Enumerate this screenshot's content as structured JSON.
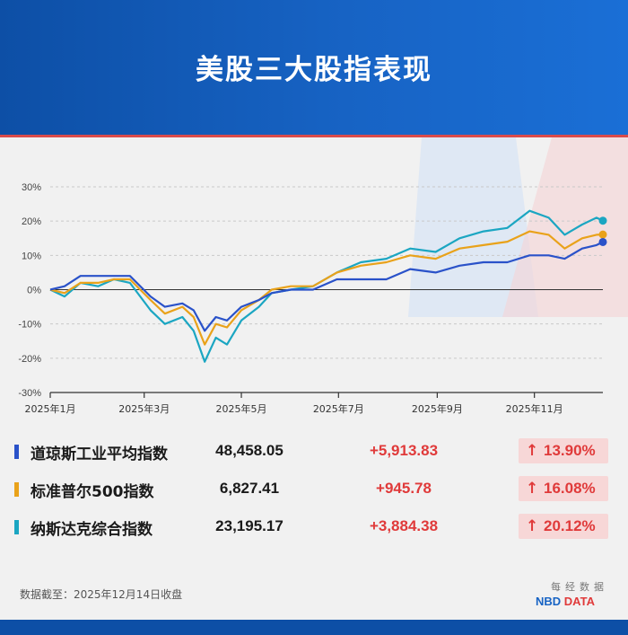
{
  "title": "美股三大股指表现",
  "colors": {
    "header": "#0d4fa6",
    "accent_red": "#e03a3a"
  },
  "chart_data": {
    "type": "line",
    "ylim": [
      -30,
      30
    ],
    "y_ticks": [
      "30%",
      "20%",
      "10%",
      "0%",
      "-10%",
      "-20%",
      "-30%"
    ],
    "y_tick_values": [
      30,
      20,
      10,
      0,
      -10,
      -20,
      -30
    ],
    "x_ticks": [
      "2025年1月",
      "2025年3月",
      "2025年5月",
      "2025年7月",
      "2025年9月",
      "2025年11月"
    ],
    "x_tick_dates": [
      "2025-01-01",
      "2025-03-01",
      "2025-05-01",
      "2025-07-01",
      "2025-09-01",
      "2025-11-01"
    ],
    "x_range": [
      "2025-01-01",
      "2025-12-14"
    ],
    "grid": "horizontal dashed",
    "series": [
      {
        "name": "纳斯达克综合指数",
        "color": "#1ba6c2",
        "x": [
          "2025-01-01",
          "2025-01-10",
          "2025-01-20",
          "2025-01-31",
          "2025-02-10",
          "2025-02-20",
          "2025-03-05",
          "2025-03-14",
          "2025-03-25",
          "2025-04-01",
          "2025-04-08",
          "2025-04-15",
          "2025-04-22",
          "2025-05-01",
          "2025-05-12",
          "2025-05-20",
          "2025-06-01",
          "2025-06-15",
          "2025-06-30",
          "2025-07-15",
          "2025-07-31",
          "2025-08-15",
          "2025-08-31",
          "2025-09-15",
          "2025-09-30",
          "2025-10-15",
          "2025-10-29",
          "2025-11-10",
          "2025-11-20",
          "2025-12-01",
          "2025-12-10",
          "2025-12-14"
        ],
        "values": [
          0,
          -2,
          2,
          1,
          3,
          2,
          -6,
          -10,
          -8,
          -12,
          -21,
          -14,
          -16,
          -9,
          -5,
          -1,
          0,
          1,
          5,
          8,
          9,
          12,
          11,
          15,
          17,
          18,
          23,
          21,
          16,
          19,
          21,
          20.12
        ]
      },
      {
        "name": "标准普尔500指数",
        "color": "#e9a21a",
        "x": [
          "2025-01-01",
          "2025-01-10",
          "2025-01-20",
          "2025-01-31",
          "2025-02-10",
          "2025-02-20",
          "2025-03-05",
          "2025-03-14",
          "2025-03-25",
          "2025-04-01",
          "2025-04-08",
          "2025-04-15",
          "2025-04-22",
          "2025-05-01",
          "2025-05-12",
          "2025-05-20",
          "2025-06-01",
          "2025-06-15",
          "2025-06-30",
          "2025-07-15",
          "2025-07-31",
          "2025-08-15",
          "2025-08-31",
          "2025-09-15",
          "2025-09-30",
          "2025-10-15",
          "2025-10-29",
          "2025-11-10",
          "2025-11-20",
          "2025-12-01",
          "2025-12-10",
          "2025-12-14"
        ],
        "values": [
          0,
          -1,
          2,
          2,
          3,
          3,
          -3,
          -7,
          -5,
          -8,
          -16,
          -10,
          -11,
          -6,
          -3,
          0,
          1,
          1,
          5,
          7,
          8,
          10,
          9,
          12,
          13,
          14,
          17,
          16,
          12,
          15,
          16,
          16.08
        ]
      },
      {
        "name": "道琼斯工业平均指数",
        "color": "#2a52c9",
        "x": [
          "2025-01-01",
          "2025-01-10",
          "2025-01-20",
          "2025-01-31",
          "2025-02-10",
          "2025-02-20",
          "2025-03-05",
          "2025-03-14",
          "2025-03-25",
          "2025-04-01",
          "2025-04-08",
          "2025-04-15",
          "2025-04-22",
          "2025-05-01",
          "2025-05-12",
          "2025-05-20",
          "2025-06-01",
          "2025-06-15",
          "2025-06-30",
          "2025-07-15",
          "2025-07-31",
          "2025-08-15",
          "2025-08-31",
          "2025-09-15",
          "2025-09-30",
          "2025-10-15",
          "2025-10-29",
          "2025-11-10",
          "2025-11-20",
          "2025-12-01",
          "2025-12-10",
          "2025-12-14"
        ],
        "values": [
          0,
          1,
          4,
          4,
          4,
          4,
          -2,
          -5,
          -4,
          -6,
          -12,
          -8,
          -9,
          -5,
          -3,
          -1,
          0,
          0,
          3,
          3,
          3,
          6,
          5,
          7,
          8,
          8,
          10,
          10,
          9,
          12,
          13,
          13.9
        ]
      }
    ]
  },
  "table": [
    {
      "name": "道琼斯工业平均指数",
      "value": "48,458.05",
      "change": "+5,913.83",
      "arrow": "↑",
      "pct": "13.90%",
      "color": "#2a52c9"
    },
    {
      "name": "标准普尔500指数",
      "value": "6,827.41",
      "change": "+945.78",
      "arrow": "↑",
      "pct": "16.08%",
      "color": "#e9a21a"
    },
    {
      "name": "纳斯达克综合指数",
      "value": "23,195.17",
      "change": "+3,884.38",
      "arrow": "↑",
      "pct": "20.12%",
      "color": "#1ba6c2"
    }
  ],
  "footer": {
    "source": "数据截至：2025年12月14日收盘",
    "brand_cn": "每经数据",
    "brand_en_1": "NBD",
    "brand_en_2": "DATA"
  }
}
